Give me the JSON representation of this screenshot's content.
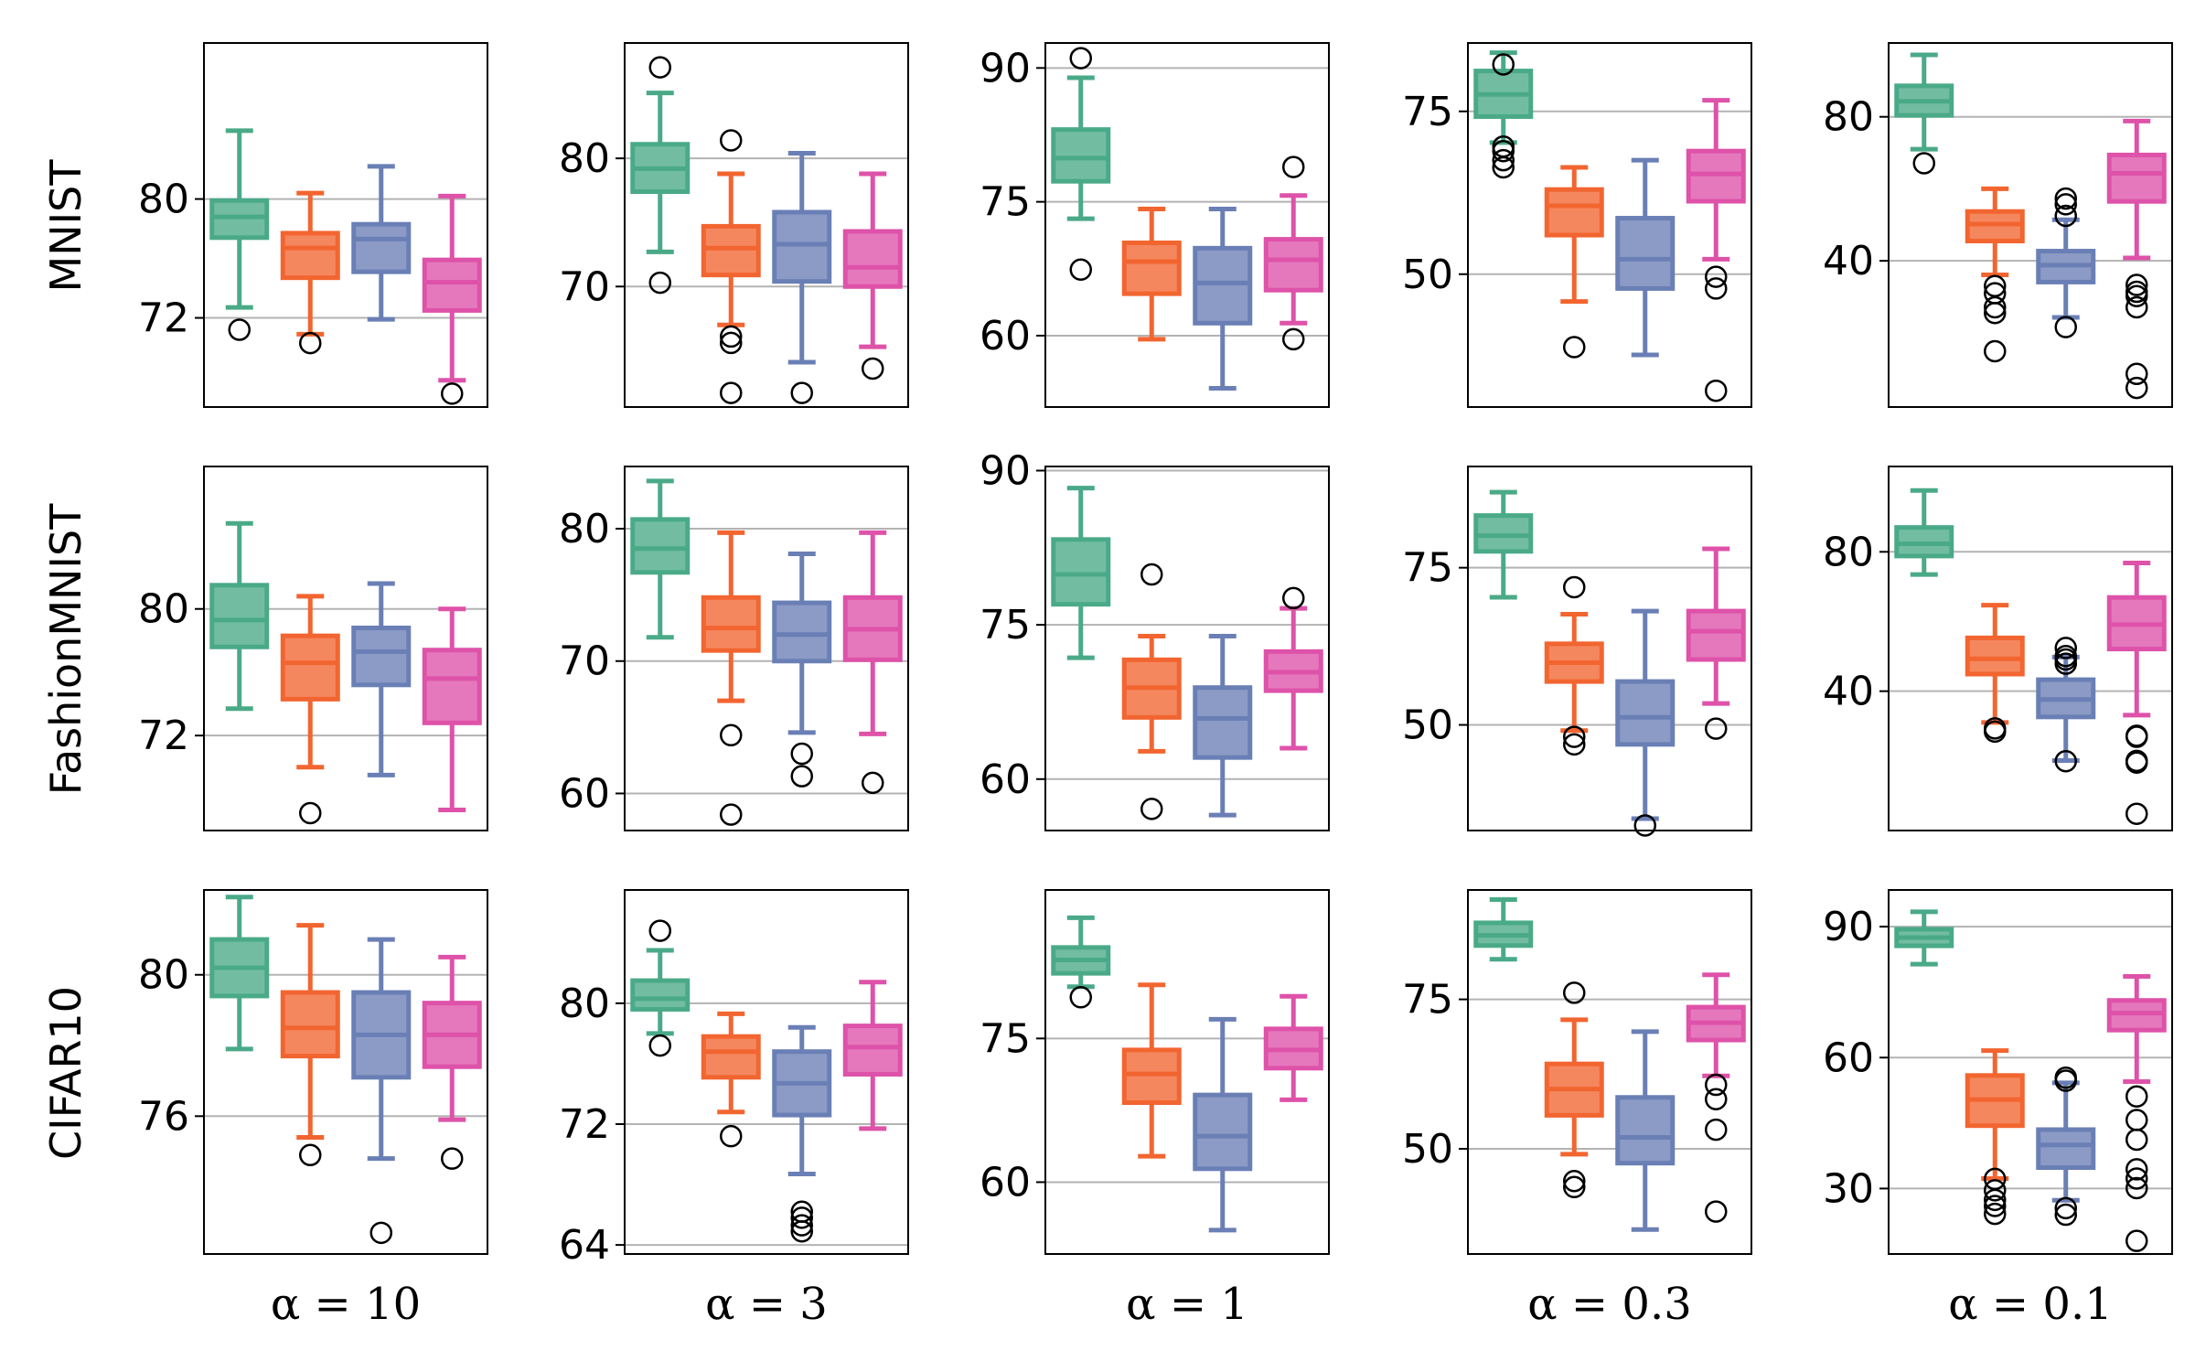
{
  "rows": [
    "MNIST",
    "FashionMNIST",
    "CIFAR10"
  ],
  "columns": [
    "α = 10",
    "α = 3",
    "α = 1",
    "α = 0.3",
    "α = 0.1"
  ],
  "colors": [
    "#4aaa88",
    "#f26530",
    "#6a7fb5",
    "#de52a9"
  ],
  "chart_data": [
    {
      "type": "box",
      "dataset": "MNIST",
      "alpha": "α = 10",
      "ylim": [
        66,
        90.5
      ],
      "yticks": [
        72,
        80
      ],
      "ytick_labels": [
        "72",
        "80"
      ],
      "boxes": [
        {
          "whisker_low": 72.7,
          "q1": 77.4,
          "median": 78.8,
          "q3": 79.9,
          "whisker_high": 84.6,
          "outliers": [
            71.2
          ]
        },
        {
          "whisker_low": 70.9,
          "q1": 74.7,
          "median": 76.7,
          "q3": 77.7,
          "whisker_high": 80.4,
          "outliers": [
            70.3
          ]
        },
        {
          "whisker_low": 71.9,
          "q1": 75.1,
          "median": 77.3,
          "q3": 78.3,
          "whisker_high": 82.2,
          "outliers": []
        },
        {
          "whisker_low": 67.8,
          "q1": 72.5,
          "median": 74.4,
          "q3": 75.9,
          "whisker_high": 80.2,
          "outliers": [
            66.9
          ]
        }
      ]
    },
    {
      "type": "box",
      "dataset": "MNIST",
      "alpha": "α = 3",
      "ylim": [
        60.6,
        89
      ],
      "yticks": [
        70,
        80
      ],
      "ytick_labels": [
        "70",
        "80"
      ],
      "boxes": [
        {
          "whisker_low": 72.7,
          "q1": 77.4,
          "median": 79.2,
          "q3": 81.1,
          "whisker_high": 85.1,
          "outliers": [
            70.3,
            87.1
          ]
        },
        {
          "whisker_low": 67.0,
          "q1": 70.9,
          "median": 73.0,
          "q3": 74.7,
          "whisker_high": 78.8,
          "outliers": [
            66.1,
            65.6,
            61.7,
            81.4
          ]
        },
        {
          "whisker_low": 64.1,
          "q1": 70.4,
          "median": 73.3,
          "q3": 75.8,
          "whisker_high": 80.4,
          "outliers": [
            61.7
          ]
        },
        {
          "whisker_low": 65.3,
          "q1": 70.0,
          "median": 71.5,
          "q3": 74.3,
          "whisker_high": 78.8,
          "outliers": [
            63.6
          ]
        }
      ]
    },
    {
      "type": "box",
      "dataset": "MNIST",
      "alpha": "α = 1",
      "ylim": [
        52,
        92.8
      ],
      "yticks": [
        60,
        75,
        90
      ],
      "ytick_labels": [
        "60",
        "75",
        "90"
      ],
      "boxes": [
        {
          "whisker_low": 73.1,
          "q1": 77.3,
          "median": 79.9,
          "q3": 83.1,
          "whisker_high": 88.9,
          "outliers": [
            67.4,
            91.1
          ]
        },
        {
          "whisker_low": 59.6,
          "q1": 64.7,
          "median": 68.3,
          "q3": 70.4,
          "whisker_high": 74.2,
          "outliers": []
        },
        {
          "whisker_low": 54.1,
          "q1": 61.4,
          "median": 65.9,
          "q3": 69.8,
          "whisker_high": 74.2,
          "outliers": []
        },
        {
          "whisker_low": 61.4,
          "q1": 65.1,
          "median": 68.5,
          "q3": 70.8,
          "whisker_high": 75.7,
          "outliers": [
            59.6,
            78.9
          ]
        }
      ]
    },
    {
      "type": "box",
      "dataset": "MNIST",
      "alpha": "α = 0.3",
      "ylim": [
        29.6,
        85.5
      ],
      "yticks": [
        50,
        75
      ],
      "ytick_labels": [
        "50",
        "75"
      ],
      "boxes": [
        {
          "whisker_low": 70.2,
          "q1": 74.2,
          "median": 77.6,
          "q3": 81.2,
          "whisker_high": 84.0,
          "outliers": [
            69.6,
            68.9,
            67.5,
            66.4,
            82.2
          ]
        },
        {
          "whisker_low": 45.8,
          "q1": 56.0,
          "median": 60.5,
          "q3": 63.0,
          "whisker_high": 66.4,
          "outliers": [
            38.8
          ]
        },
        {
          "whisker_low": 37.6,
          "q1": 47.8,
          "median": 52.3,
          "q3": 58.6,
          "whisker_high": 67.5,
          "outliers": []
        },
        {
          "whisker_low": 52.3,
          "q1": 61.2,
          "median": 65.4,
          "q3": 68.9,
          "whisker_high": 76.7,
          "outliers": [
            49.6,
            47.8,
            32.1
          ]
        }
      ]
    },
    {
      "type": "box",
      "dataset": "MNIST",
      "alpha": "α = 0.1",
      "ylim": [
        -0.6,
        100.5
      ],
      "yticks": [
        40,
        80
      ],
      "ytick_labels": [
        "40",
        "80"
      ],
      "boxes": [
        {
          "whisker_low": 71.0,
          "q1": 80.4,
          "median": 84.3,
          "q3": 88.6,
          "whisker_high": 97.2,
          "outliers": [
            67.1
          ]
        },
        {
          "whisker_low": 36.1,
          "q1": 45.5,
          "median": 50.2,
          "q3": 53.7,
          "whisker_high": 60.0,
          "outliers": [
            33.0,
            31.0,
            27.1,
            25.5,
            14.9
          ]
        },
        {
          "whisker_low": 24.3,
          "q1": 34.1,
          "median": 38.8,
          "q3": 42.7,
          "whisker_high": 51.4,
          "outliers": [
            21.6,
            52.5,
            55.7,
            57.3
          ]
        },
        {
          "whisker_low": 40.8,
          "q1": 56.5,
          "median": 64.3,
          "q3": 69.4,
          "whisker_high": 78.8,
          "outliers": [
            33.3,
            31.4,
            30.2,
            27.1,
            8.6,
            4.7
          ]
        }
      ]
    },
    {
      "type": "box",
      "dataset": "FashionMNIST",
      "alpha": "α = 3",
      "ylim": [
        57.2,
        84.7
      ],
      "yticks": [
        60,
        70,
        80
      ],
      "ytick_labels": [
        "60",
        "70",
        "80"
      ],
      "boxes": [
        {
          "whisker_low": 71.8,
          "q1": 76.7,
          "median": 78.5,
          "q3": 80.7,
          "whisker_high": 83.6,
          "outliers": []
        },
        {
          "whisker_low": 67.0,
          "q1": 70.8,
          "median": 72.5,
          "q3": 74.8,
          "whisker_high": 79.7,
          "outliers": [
            64.4,
            58.4
          ]
        },
        {
          "whisker_low": 64.6,
          "q1": 70.0,
          "median": 72.0,
          "q3": 74.4,
          "whisker_high": 78.1,
          "outliers": [
            63.0,
            61.3
          ]
        },
        {
          "whisker_low": 64.5,
          "q1": 70.1,
          "median": 72.4,
          "q3": 74.8,
          "whisker_high": 79.7,
          "outliers": [
            60.8
          ]
        }
      ]
    },
    {
      "type": "box",
      "dataset": "FashionMNIST",
      "alpha": "α = 10",
      "ylim": [
        66,
        89
      ],
      "yticks": [
        72,
        80
      ],
      "ytick_labels": [
        "72",
        "80"
      ],
      "boxes": [
        {
          "whisker_low": 73.7,
          "q1": 77.6,
          "median": 79.3,
          "q3": 81.5,
          "whisker_high": 85.4,
          "outliers": []
        },
        {
          "whisker_low": 70.0,
          "q1": 74.3,
          "median": 76.6,
          "q3": 78.3,
          "whisker_high": 80.8,
          "outliers": [
            67.1
          ]
        },
        {
          "whisker_low": 69.5,
          "q1": 75.2,
          "median": 77.3,
          "q3": 78.8,
          "whisker_high": 81.6,
          "outliers": []
        },
        {
          "whisker_low": 67.3,
          "q1": 72.8,
          "median": 75.6,
          "q3": 77.4,
          "whisker_high": 80.0,
          "outliers": []
        }
      ]
    },
    {
      "type": "box",
      "dataset": "FashionMNIST",
      "alpha": "α = 1",
      "ylim": [
        55,
        90.4
      ],
      "yticks": [
        60,
        75,
        90
      ],
      "ytick_labels": [
        "60",
        "75",
        "90"
      ],
      "boxes": [
        {
          "whisker_low": 71.8,
          "q1": 77.0,
          "median": 79.9,
          "q3": 83.3,
          "whisker_high": 88.3,
          "outliers": []
        },
        {
          "whisker_low": 62.7,
          "q1": 66.0,
          "median": 68.9,
          "q3": 71.6,
          "whisker_high": 73.9,
          "outliers": [
            57.1,
            79.9
          ]
        },
        {
          "whisker_low": 56.5,
          "q1": 62.1,
          "median": 65.9,
          "q3": 68.9,
          "whisker_high": 73.9,
          "outliers": []
        },
        {
          "whisker_low": 63.0,
          "q1": 68.6,
          "median": 70.4,
          "q3": 72.4,
          "whisker_high": 76.6,
          "outliers": [
            77.6
          ]
        }
      ]
    },
    {
      "type": "box",
      "dataset": "FashionMNIST",
      "alpha": "α = 0.3",
      "ylim": [
        33.2,
        91.1
      ],
      "yticks": [
        50,
        75
      ],
      "ytick_labels": [
        "50",
        "75"
      ],
      "boxes": [
        {
          "whisker_low": 70.3,
          "q1": 77.6,
          "median": 80.1,
          "q3": 83.3,
          "whisker_high": 87.0,
          "outliers": []
        },
        {
          "whisker_low": 49.1,
          "q1": 56.9,
          "median": 59.9,
          "q3": 62.9,
          "whisker_high": 67.6,
          "outliers": [
            48.1,
            46.9,
            71.9
          ]
        },
        {
          "whisker_low": 35.1,
          "q1": 46.9,
          "median": 51.2,
          "q3": 56.9,
          "whisker_high": 68.1,
          "outliers": [
            34.0
          ]
        },
        {
          "whisker_low": 53.4,
          "q1": 60.4,
          "median": 64.9,
          "q3": 68.1,
          "whisker_high": 78.0,
          "outliers": [
            49.4
          ]
        }
      ]
    },
    {
      "type": "box",
      "dataset": "FashionMNIST",
      "alpha": "α = 0.1",
      "ylim": [
        0,
        104.5
      ],
      "yticks": [
        40,
        80
      ],
      "ytick_labels": [
        "40",
        "80"
      ],
      "boxes": [
        {
          "whisker_low": 73.5,
          "q1": 78.8,
          "median": 82.3,
          "q3": 87.0,
          "whisker_high": 97.6,
          "outliers": []
        },
        {
          "whisker_low": 31.0,
          "q1": 44.9,
          "median": 49.3,
          "q3": 55.3,
          "whisker_high": 64.7,
          "outliers": [
            29.3,
            28.4
          ]
        },
        {
          "whisker_low": 20.1,
          "q1": 32.6,
          "median": 37.6,
          "q3": 43.3,
          "whisker_high": 49.8,
          "outliers": [
            47.9,
            49.1,
            50.1,
            52.4,
            19.9
          ]
        },
        {
          "whisker_low": 33.1,
          "q1": 52.1,
          "median": 59.1,
          "q3": 66.9,
          "whisker_high": 76.8,
          "outliers": [
            27.2,
            26.9,
            20.0,
            19.5,
            4.8
          ]
        }
      ]
    },
    {
      "type": "box",
      "dataset": "CIFAR10",
      "alpha": "α = 10",
      "ylim": [
        72.1,
        82.4
      ],
      "yticks": [
        76,
        80
      ],
      "ytick_labels": [
        "76",
        "80"
      ],
      "boxes": [
        {
          "whisker_low": 77.9,
          "q1": 79.4,
          "median": 80.2,
          "q3": 81.0,
          "whisker_high": 82.2,
          "outliers": []
        },
        {
          "whisker_low": 75.4,
          "q1": 77.7,
          "median": 78.5,
          "q3": 79.5,
          "whisker_high": 81.4,
          "outliers": [
            74.9
          ]
        },
        {
          "whisker_low": 74.8,
          "q1": 77.1,
          "median": 78.3,
          "q3": 79.5,
          "whisker_high": 81.0,
          "outliers": [
            72.7
          ]
        },
        {
          "whisker_low": 75.9,
          "q1": 77.4,
          "median": 78.3,
          "q3": 79.2,
          "whisker_high": 80.5,
          "outliers": [
            74.8
          ]
        }
      ]
    },
    {
      "type": "box",
      "dataset": "CIFAR10",
      "alpha": "α = 3",
      "ylim": [
        63.4,
        87.5
      ],
      "yticks": [
        64,
        72,
        80
      ],
      "ytick_labels": [
        "64",
        "72",
        "80"
      ],
      "boxes": [
        {
          "whisker_low": 78.0,
          "q1": 79.6,
          "median": 80.3,
          "q3": 81.5,
          "whisker_high": 83.5,
          "outliers": [
            77.2,
            84.8
          ]
        },
        {
          "whisker_low": 72.8,
          "q1": 75.1,
          "median": 76.8,
          "q3": 77.8,
          "whisker_high": 79.3,
          "outliers": [
            71.2
          ]
        },
        {
          "whisker_low": 68.7,
          "q1": 72.6,
          "median": 74.7,
          "q3": 76.8,
          "whisker_high": 78.4,
          "outliers": [
            66.2,
            65.8,
            65.3,
            64.9
          ]
        },
        {
          "whisker_low": 71.7,
          "q1": 75.3,
          "median": 77.1,
          "q3": 78.5,
          "whisker_high": 81.4,
          "outliers": []
        }
      ]
    },
    {
      "type": "box",
      "dataset": "CIFAR10",
      "alpha": "α = 1",
      "ylim": [
        52.5,
        90.5
      ],
      "yticks": [
        60,
        75
      ],
      "ytick_labels": [
        "60",
        "75"
      ],
      "boxes": [
        {
          "whisker_low": 80.4,
          "q1": 81.8,
          "median": 83.2,
          "q3": 84.5,
          "whisker_high": 87.6,
          "outliers": [
            79.3
          ]
        },
        {
          "whisker_low": 62.7,
          "q1": 68.3,
          "median": 71.3,
          "q3": 73.8,
          "whisker_high": 80.6,
          "outliers": []
        },
        {
          "whisker_low": 55.0,
          "q1": 61.4,
          "median": 64.8,
          "q3": 69.1,
          "whisker_high": 77.0,
          "outliers": []
        },
        {
          "whisker_low": 68.6,
          "q1": 71.9,
          "median": 73.8,
          "q3": 76.0,
          "whisker_high": 79.4,
          "outliers": []
        }
      ]
    },
    {
      "type": "box",
      "dataset": "CIFAR10",
      "alpha": "α = 0.3",
      "ylim": [
        32.4,
        93.3
      ],
      "yticks": [
        50,
        75
      ],
      "ytick_labels": [
        "50",
        "75"
      ],
      "boxes": [
        {
          "whisker_low": 81.7,
          "q1": 84.0,
          "median": 85.7,
          "q3": 87.8,
          "whisker_high": 91.7,
          "outliers": []
        },
        {
          "whisker_low": 49.1,
          "q1": 55.6,
          "median": 60.0,
          "q3": 64.2,
          "whisker_high": 71.6,
          "outliers": [
            44.6,
            43.6,
            76.1
          ]
        },
        {
          "whisker_low": 36.5,
          "q1": 47.6,
          "median": 51.9,
          "q3": 58.6,
          "whisker_high": 69.6,
          "outliers": []
        },
        {
          "whisker_low": 62.2,
          "q1": 68.2,
          "median": 71.1,
          "q3": 73.7,
          "whisker_high": 79.1,
          "outliers": [
            60.7,
            58.3,
            53.2,
            39.5
          ]
        }
      ]
    },
    {
      "type": "box",
      "dataset": "CIFAR10",
      "alpha": "α = 0.1",
      "ylim": [
        15,
        98.4
      ],
      "yticks": [
        30,
        60,
        90
      ],
      "ytick_labels": [
        "30",
        "60",
        "90"
      ],
      "boxes": [
        {
          "whisker_low": 81.4,
          "q1": 85.6,
          "median": 87.5,
          "q3": 89.4,
          "whisker_high": 93.4,
          "outliers": []
        },
        {
          "whisker_low": 32.3,
          "q1": 44.4,
          "median": 50.4,
          "q3": 55.9,
          "whisker_high": 61.6,
          "outliers": [
            32.2,
            29.6,
            27.4,
            26.0,
            24.2
          ]
        },
        {
          "whisker_low": 27.3,
          "q1": 34.8,
          "median": 40.0,
          "q3": 43.5,
          "whisker_high": 54.2,
          "outliers": [
            54.7,
            55.4,
            25.5,
            24.0
          ]
        },
        {
          "whisker_low": 54.5,
          "q1": 66.3,
          "median": 70.2,
          "q3": 73.1,
          "whisker_high": 78.6,
          "outliers": [
            51.1,
            45.7,
            41.2,
            34.4,
            32.3,
            30.1,
            18.0
          ]
        }
      ]
    }
  ]
}
